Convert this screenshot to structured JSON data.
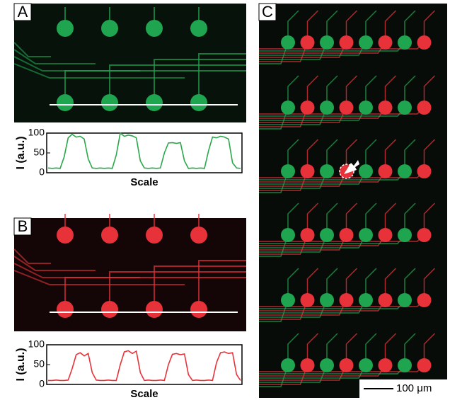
{
  "panel_labels": [
    "A",
    "B",
    "C"
  ],
  "scale_bar": "100 μm",
  "chart_data": [
    {
      "type": "line",
      "ylabel": "I (a.u.)",
      "xlabel": "Scale",
      "ylim": [
        0,
        100
      ],
      "yticks": [
        0,
        50,
        100
      ],
      "series": [
        {
          "color": "#2aa84a",
          "values": [
            12,
            11,
            12,
            11,
            40,
            88,
            97,
            90,
            92,
            85,
            35,
            12,
            11,
            12,
            11,
            12,
            11,
            45,
            100,
            92,
            95,
            93,
            88,
            30,
            12,
            11,
            12,
            11,
            12,
            50,
            75,
            76,
            74,
            76,
            30,
            11,
            12,
            11,
            12,
            11,
            55,
            90,
            88,
            92,
            90,
            85,
            25,
            12,
            11
          ]
        }
      ]
    },
    {
      "type": "line",
      "ylabel": "I (a.u.)",
      "xlabel": "Scale",
      "ylim": [
        0,
        100
      ],
      "yticks": [
        0,
        50,
        100
      ],
      "series": [
        {
          "color": "#e8323a",
          "values": [
            10,
            10,
            11,
            10,
            10,
            11,
            40,
            75,
            80,
            72,
            78,
            30,
            11,
            10,
            10,
            11,
            10,
            10,
            50,
            82,
            85,
            78,
            84,
            30,
            10,
            11,
            10,
            10,
            11,
            10,
            50,
            76,
            78,
            75,
            77,
            25,
            10,
            11,
            10,
            10,
            11,
            10,
            55,
            80,
            82,
            78,
            80,
            25,
            10
          ]
        }
      ]
    }
  ]
}
